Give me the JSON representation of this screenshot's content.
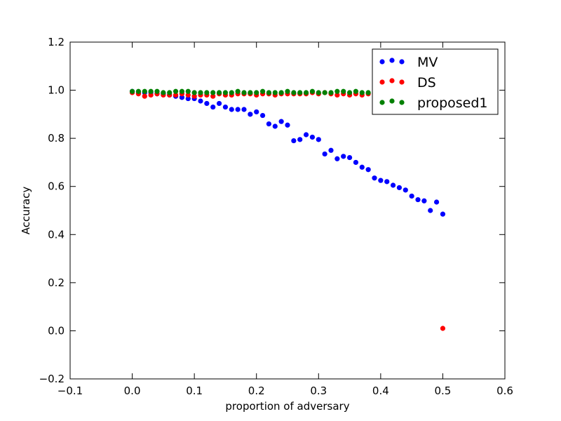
{
  "chart_data": {
    "type": "scatter",
    "title": "",
    "xlabel": "proportion of adversary",
    "ylabel": "Accuracy",
    "xlim": [
      -0.1,
      0.6
    ],
    "ylim": [
      -0.2,
      1.2
    ],
    "xticks": [
      -0.1,
      0.0,
      0.1,
      0.2,
      0.3,
      0.4,
      0.5,
      0.6
    ],
    "yticks": [
      -0.2,
      0.0,
      0.2,
      0.4,
      0.6,
      0.8,
      1.0,
      1.2
    ],
    "xtick_labels": [
      "−0.1",
      "0.0",
      "0.1",
      "0.2",
      "0.3",
      "0.4",
      "0.5",
      "0.6"
    ],
    "ytick_labels": [
      "−0.2",
      "0.0",
      "0.2",
      "0.4",
      "0.6",
      "0.8",
      "1.0",
      "1.2"
    ],
    "grid": false,
    "legend_position": "top-right",
    "x": [
      0.0,
      0.01,
      0.02,
      0.03,
      0.04,
      0.05,
      0.06,
      0.07,
      0.08,
      0.09,
      0.1,
      0.11,
      0.12,
      0.13,
      0.14,
      0.15,
      0.16,
      0.17,
      0.18,
      0.19,
      0.2,
      0.21,
      0.22,
      0.23,
      0.24,
      0.25,
      0.26,
      0.27,
      0.28,
      0.29,
      0.3,
      0.31,
      0.32,
      0.33,
      0.34,
      0.35,
      0.36,
      0.37,
      0.38,
      0.39,
      0.4,
      0.41,
      0.42,
      0.43,
      0.44,
      0.45,
      0.46,
      0.47,
      0.48,
      0.49,
      0.5
    ],
    "series": [
      {
        "name": "MV",
        "color": "#0000ff",
        "values": [
          0.995,
          0.99,
          0.99,
          0.99,
          0.985,
          0.985,
          0.98,
          0.975,
          0.97,
          0.965,
          0.965,
          0.955,
          0.945,
          0.93,
          0.945,
          0.93,
          0.92,
          0.92,
          0.92,
          0.9,
          0.91,
          0.895,
          0.86,
          0.85,
          0.87,
          0.855,
          0.79,
          0.795,
          0.815,
          0.805,
          0.795,
          0.735,
          0.75,
          0.715,
          0.725,
          0.72,
          0.7,
          0.68,
          0.67,
          0.635,
          0.625,
          0.62,
          0.605,
          0.595,
          0.585,
          0.56,
          0.545,
          0.54,
          0.5,
          0.535,
          0.485
        ]
      },
      {
        "name": "DS",
        "color": "#ff0000",
        "values": [
          0.99,
          0.985,
          0.975,
          0.98,
          0.985,
          0.98,
          0.98,
          0.98,
          0.985,
          0.98,
          0.975,
          0.98,
          0.98,
          0.975,
          0.985,
          0.98,
          0.98,
          0.985,
          0.985,
          0.985,
          0.98,
          0.985,
          0.985,
          0.98,
          0.985,
          0.985,
          0.985,
          0.985,
          0.985,
          0.99,
          0.985,
          0.99,
          0.985,
          0.98,
          0.985,
          0.98,
          0.985,
          0.98,
          0.985,
          0.985,
          0.985,
          0.985,
          0.985,
          0.985,
          0.985,
          0.985,
          0.985,
          0.985,
          0.985,
          0.985,
          0.01
        ]
      },
      {
        "name": "proposed1",
        "color": "#008000",
        "values": [
          0.995,
          0.995,
          0.995,
          0.995,
          0.995,
          0.99,
          0.99,
          0.995,
          0.995,
          0.995,
          0.99,
          0.99,
          0.99,
          0.99,
          0.99,
          0.99,
          0.99,
          0.995,
          0.99,
          0.99,
          0.99,
          0.995,
          0.99,
          0.99,
          0.99,
          0.995,
          0.99,
          0.99,
          0.99,
          0.995,
          0.99,
          0.99,
          0.99,
          0.995,
          0.995,
          0.99,
          0.995,
          0.99,
          0.99,
          0.99,
          0.99,
          0.99,
          0.99,
          0.99,
          0.99,
          0.99,
          0.99,
          0.99,
          0.99,
          0.99,
          null
        ]
      }
    ]
  }
}
